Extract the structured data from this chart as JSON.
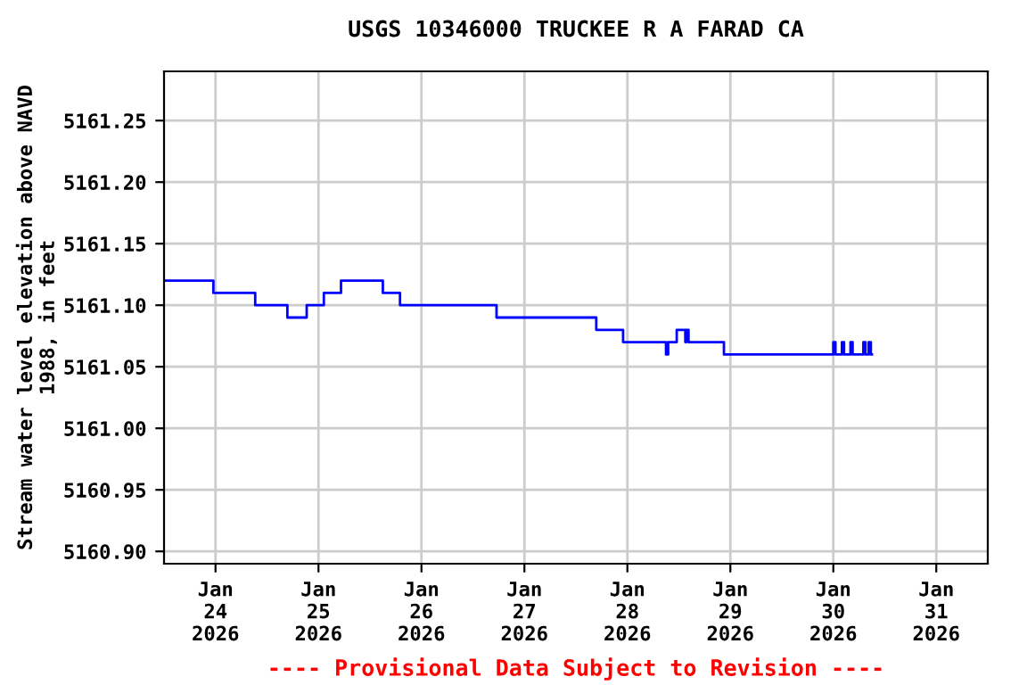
{
  "chart_data": {
    "type": "step",
    "title": "USGS 10346000 TRUCKEE R A FARAD CA",
    "ylabel": "Stream water level elevation above NAVD\n1988, in feet",
    "annotations": [
      "---- Provisional Data Subject to Revision ----"
    ],
    "x": [
      "2026-01-23T12:00",
      "2026-01-23T23:30",
      "2026-01-24T09:15",
      "2026-01-24T16:45",
      "2026-01-24T21:15",
      "2026-01-25T01:15",
      "2026-01-25T05:15",
      "2026-01-25T15:00",
      "2026-01-25T19:00",
      "2026-01-26T17:30",
      "2026-01-27T16:45",
      "2026-01-27T23:00",
      "2026-01-28T09:00",
      "2026-01-28T09:30",
      "2026-01-28T11:30",
      "2026-01-28T13:30",
      "2026-01-28T13:45",
      "2026-01-28T14:15",
      "2026-01-28T22:30",
      "2026-01-30T00:00",
      "2026-01-30T00:30",
      "2026-01-30T02:00",
      "2026-01-30T02:30",
      "2026-01-30T04:00",
      "2026-01-30T04:30",
      "2026-01-30T07:00",
      "2026-01-30T07:30",
      "2026-01-30T08:15",
      "2026-01-30T08:45",
      "2026-01-30T09:00"
    ],
    "series": [
      {
        "color": "#0000ff",
        "values": [
          5161.12,
          5161.11,
          5161.1,
          5161.09,
          5161.1,
          5161.11,
          5161.12,
          5161.11,
          5161.1,
          5161.09,
          5161.08,
          5161.07,
          5161.06,
          5161.07,
          5161.08,
          5161.07,
          5161.08,
          5161.07,
          5161.06,
          5161.07,
          5161.06,
          5161.07,
          5161.06,
          5161.07,
          5161.06,
          5161.07,
          5161.06,
          5161.07,
          5161.06,
          5161.06
        ]
      }
    ],
    "xlim": [
      "2026-01-23T12:00",
      "2026-01-31T12:00"
    ],
    "xticks": [
      {
        "value": "2026-01-24",
        "label": "Jan\n24\n2026"
      },
      {
        "value": "2026-01-25",
        "label": "Jan\n25\n2026"
      },
      {
        "value": "2026-01-26",
        "label": "Jan\n26\n2026"
      },
      {
        "value": "2026-01-27",
        "label": "Jan\n27\n2026"
      },
      {
        "value": "2026-01-28",
        "label": "Jan\n28\n2026"
      },
      {
        "value": "2026-01-29",
        "label": "Jan\n29\n2026"
      },
      {
        "value": "2026-01-30",
        "label": "Jan\n30\n2026"
      },
      {
        "value": "2026-01-31",
        "label": "Jan\n31\n2026"
      }
    ],
    "ylim": [
      5160.89,
      5161.29
    ],
    "yticks": [
      {
        "value": 5160.9,
        "label": "5160.90"
      },
      {
        "value": 5160.95,
        "label": "5160.95"
      },
      {
        "value": 5161.0,
        "label": "5161.00"
      },
      {
        "value": 5161.05,
        "label": "5161.05"
      },
      {
        "value": 5161.1,
        "label": "5161.10"
      },
      {
        "value": 5161.15,
        "label": "5161.15"
      },
      {
        "value": 5161.2,
        "label": "5161.20"
      },
      {
        "value": 5161.25,
        "label": "5161.25"
      }
    ],
    "grid": true,
    "legend": false
  }
}
